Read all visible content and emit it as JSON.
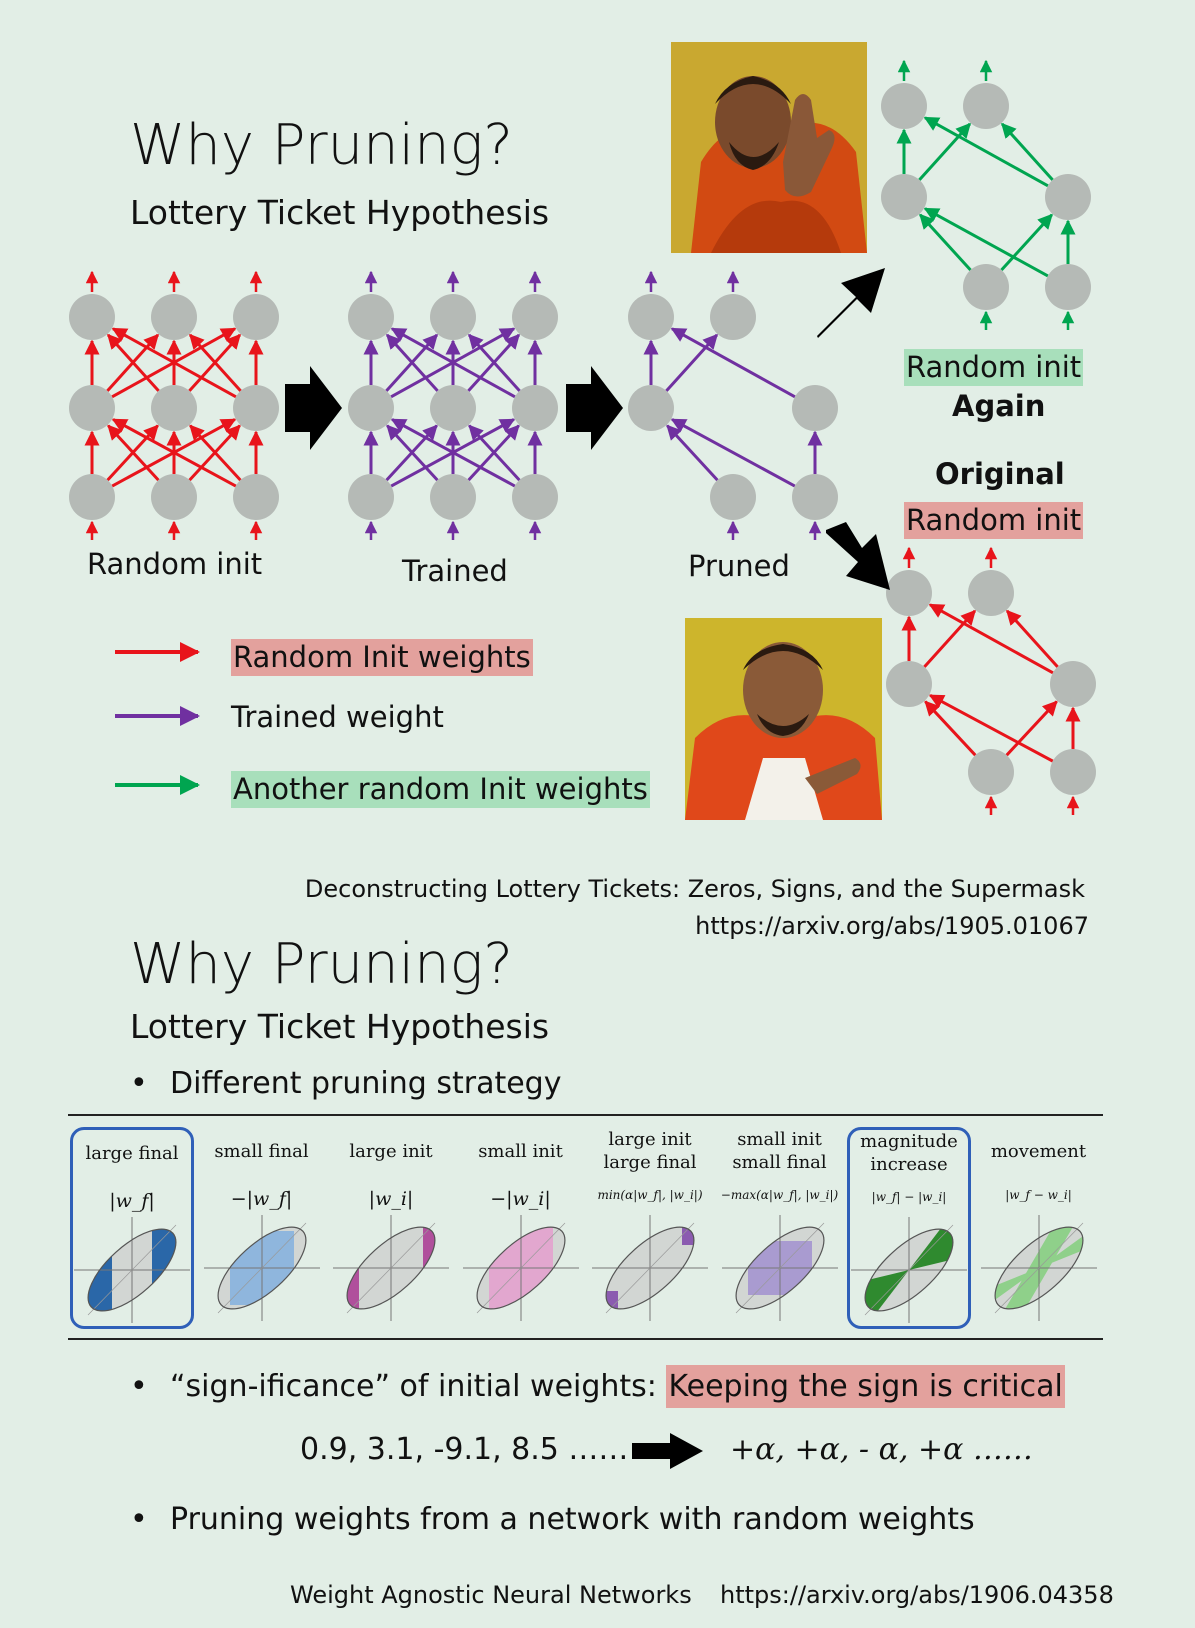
{
  "slide1": {
    "title": "Why Pruning?",
    "subtitle": "Lottery Ticket Hypothesis",
    "net_labels": {
      "random_init": "Random init",
      "trained": "Trained",
      "pruned": "Pruned"
    },
    "top_branch": {
      "label": "Random init",
      "label2": "Again"
    },
    "bottom_branch": {
      "label1": "Original",
      "label2": "Random init"
    },
    "legend": [
      {
        "text": "Random Init weights",
        "color": "#e8141b"
      },
      {
        "text": "Trained weight",
        "color": "#7030a0"
      },
      {
        "text": "Another random Init weights",
        "color": "#00a550"
      }
    ],
    "citation_title": "Deconstructing Lottery Tickets: Zeros, Signs, and the Supermask",
    "citation_url": "https://arxiv.org/abs/1905.01067"
  },
  "slide2": {
    "title": "Why Pruning?",
    "subtitle": "Lottery Ticket Hypothesis",
    "bullet1": "Different pruning strategy",
    "strategies": [
      {
        "label": "large final",
        "formula": "|w_f|",
        "highlight": true,
        "color": "#2a67a8"
      },
      {
        "label": "small final",
        "formula": "−|w_f|",
        "highlight": false,
        "color": "#8fb6dd"
      },
      {
        "label": "large init",
        "formula": "|w_i|",
        "highlight": false,
        "color": "#b0509c"
      },
      {
        "label": "small init",
        "formula": "−|w_i|",
        "highlight": false,
        "color": "#e2a7cf"
      },
      {
        "label": "large init large final",
        "formula": "min(α|w_f|, |w_i|)",
        "highlight": false,
        "color": "#8b5bb0"
      },
      {
        "label": "small init small final",
        "formula": "−max(α|w_f|, |w_i|)",
        "highlight": false,
        "color": "#a99bd0"
      },
      {
        "label": "magnitude increase",
        "formula": "|w_f| − |w_i|",
        "highlight": true,
        "color": "#2f8a2f"
      },
      {
        "label": "movement",
        "formula": "|w_f − w_i|",
        "highlight": false,
        "color": "#8fd08a"
      }
    ],
    "bullet2_prefix": "“sign-ificance” of initial weights: ",
    "bullet2_highlight": "Keeping the sign is critical",
    "example_values": "0.9, 3.1, -9.1, 8.5 ……",
    "example_signs": "+α, +α, - α, +α ……",
    "bullet3": "Pruning weights from a network with random weights",
    "citation_title": "Weight Agnostic Neural Networks",
    "citation_url": "https://arxiv.org/abs/1906.04358"
  },
  "colors": {
    "background": "#e2eee6",
    "node": "#b5bab6",
    "random": "#e8141b",
    "trained": "#7030a0",
    "another": "#00a550",
    "highlight_red": "#e3a19d",
    "highlight_green": "#a8dfbb",
    "box_blue": "#2f5fb8"
  }
}
